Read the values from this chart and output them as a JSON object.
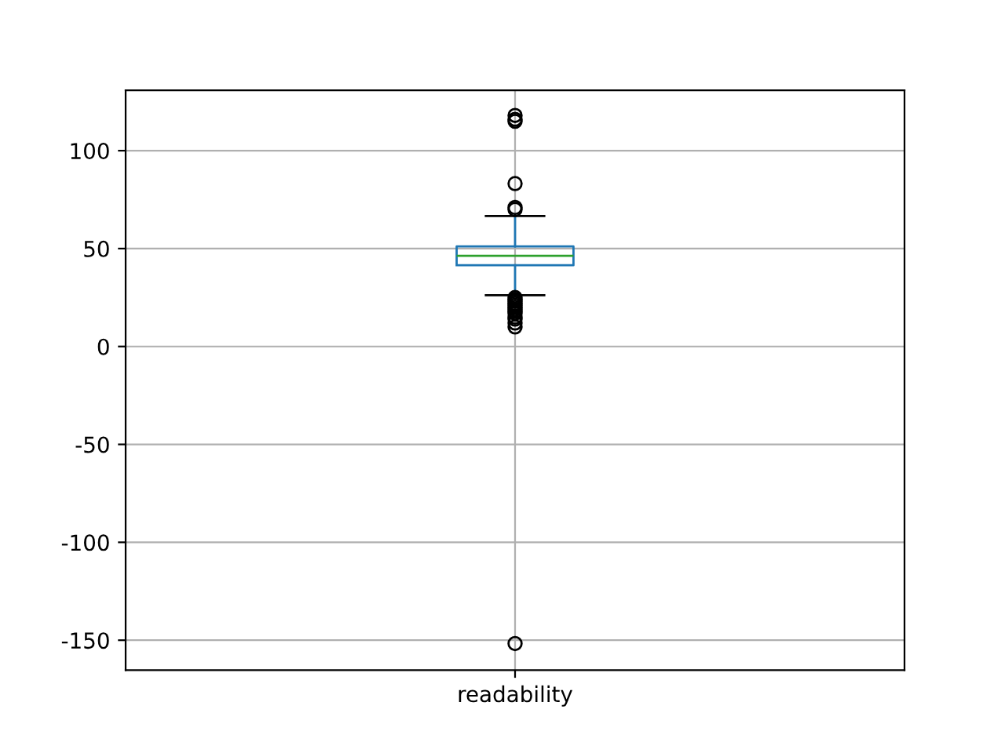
{
  "chart_data": {
    "type": "box",
    "categories": [
      "readability"
    ],
    "boxes": [
      {
        "low": 26.2,
        "q1": 41.5,
        "median": 46.3,
        "q3": 51.1,
        "high": 66.6,
        "outliers": [
          118,
          116,
          115,
          83.2,
          71,
          70,
          25,
          24,
          23,
          22,
          21,
          20,
          19,
          18,
          17,
          15,
          14,
          12,
          10,
          -151.7
        ]
      }
    ],
    "color": "#1f77b4",
    "ylim": [
      -165.3,
      130.8
    ],
    "yticks": [
      -150,
      -100,
      -50,
      0,
      50,
      100
    ],
    "grid": true
  }
}
